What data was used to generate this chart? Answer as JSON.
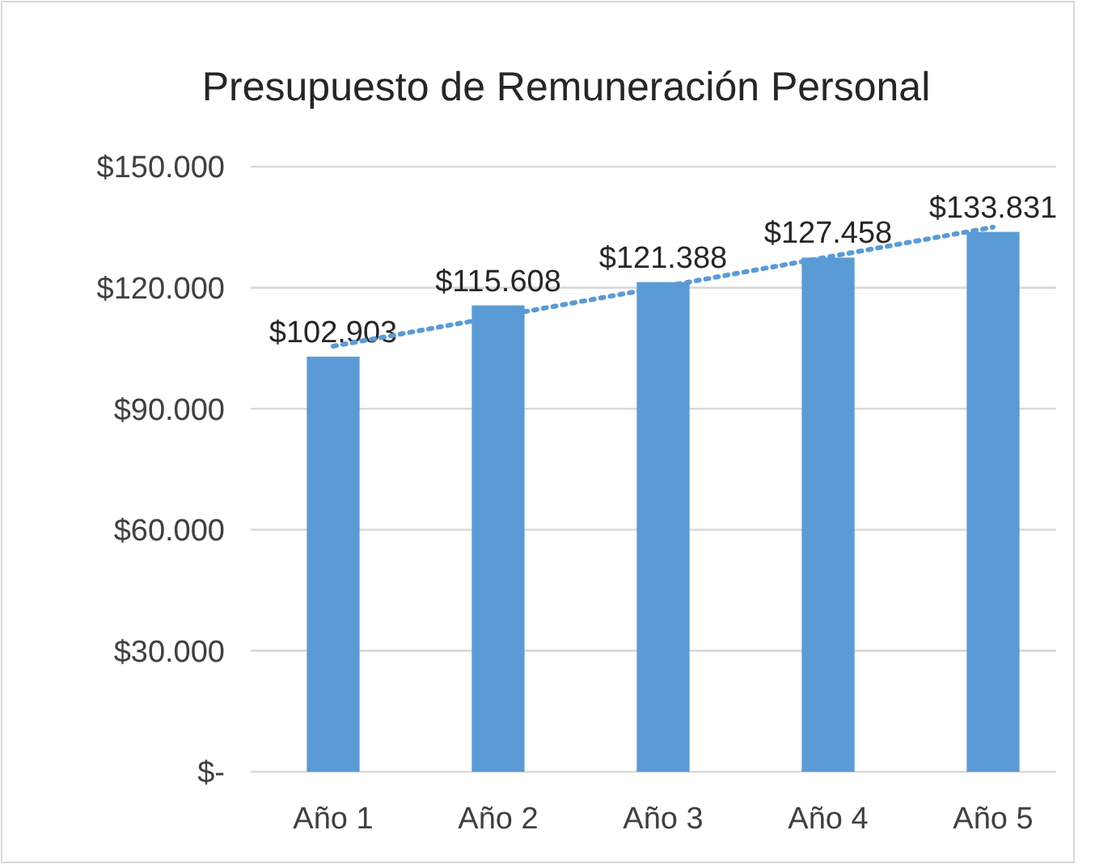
{
  "chart_data": {
    "type": "bar",
    "title": "Presupuesto de Remuneración Personal",
    "categories": [
      "Año 1",
      "Año 2",
      "Año 3",
      "Año 4",
      "Año 5"
    ],
    "series": [
      {
        "color": "#5b9bd5",
        "values": [
          102903,
          115608,
          121388,
          127458,
          133831
        ],
        "value_labels": [
          "$102.903",
          "$115.608",
          "$121.388",
          "$127.458",
          "$133.831"
        ]
      },
      {
        "type": "line",
        "color": "#5b9bd5",
        "x": [
          "Año 1",
          "Año 5"
        ],
        "values": [
          105500,
          135000
        ],
        "line_style": "dotted",
        "marker": "none"
      }
    ],
    "ylim": [
      0,
      150000
    ],
    "yticks": [
      {
        "value": 0,
        "label": "$-"
      },
      {
        "value": 30000,
        "label": "$30.000"
      },
      {
        "value": 60000,
        "label": "$60.000"
      },
      {
        "value": 90000,
        "label": "$90.000"
      },
      {
        "value": 120000,
        "label": "$120.000"
      },
      {
        "value": 150000,
        "label": "$150.000"
      }
    ],
    "grid": "y"
  }
}
